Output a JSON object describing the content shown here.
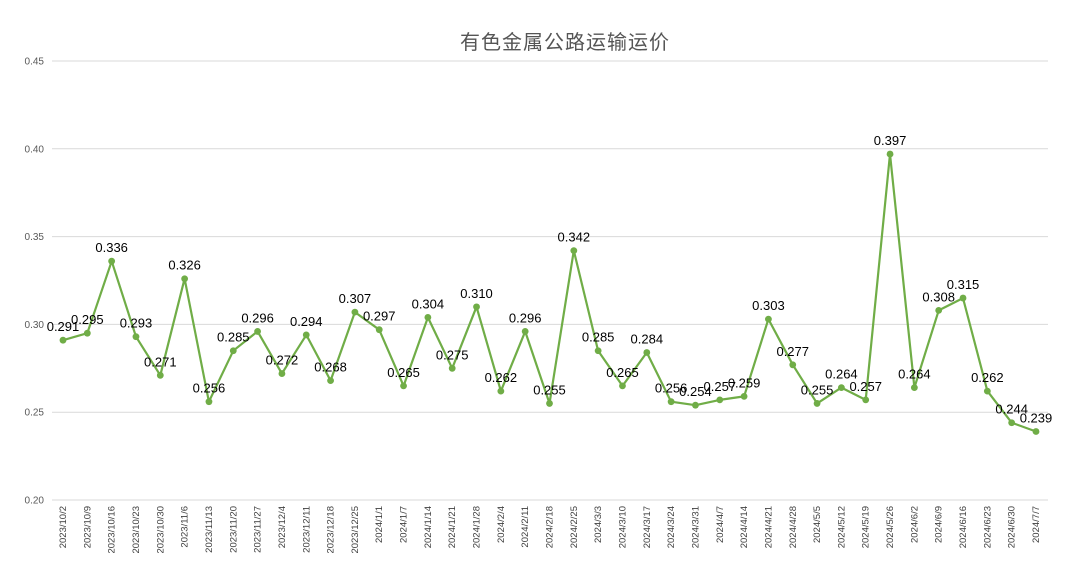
{
  "chart_data": {
    "type": "line",
    "title": "有色金属公路运输运价",
    "xlabel": "",
    "ylabel": "",
    "ylim": [
      0.2,
      0.45
    ],
    "yticks": [
      "0.20",
      "0.25",
      "0.30",
      "0.35",
      "0.40",
      "0.45"
    ],
    "grid": true,
    "legend": "none",
    "color": "#70AD47",
    "categories": [
      "2023/10/2",
      "2023/10/9",
      "2023/10/16",
      "2023/10/23",
      "2023/10/30",
      "2023/11/6",
      "2023/11/13",
      "2023/11/20",
      "2023/11/27",
      "2023/12/4",
      "2023/12/11",
      "2023/12/18",
      "2023/12/25",
      "2024/1/1",
      "2024/1/7",
      "2024/1/14",
      "2024/1/21",
      "2024/1/28",
      "2024/2/4",
      "2024/2/11",
      "2024/2/18",
      "2024/2/25",
      "2024/3/3",
      "2024/3/10",
      "2024/3/17",
      "2024/3/24",
      "2024/3/31",
      "2024/4/7",
      "2024/4/14",
      "2024/4/21",
      "2024/4/28",
      "2024/5/5",
      "2024/5/12",
      "2024/5/19",
      "2024/5/26",
      "2024/6/2",
      "2024/6/9",
      "2024/6/16",
      "2024/6/23",
      "2024/6/30",
      "2024/7/7"
    ],
    "values": [
      0.291,
      0.295,
      0.336,
      0.293,
      0.271,
      0.326,
      0.256,
      0.285,
      0.296,
      0.272,
      0.294,
      0.268,
      0.307,
      0.297,
      0.265,
      0.304,
      0.275,
      0.31,
      0.262,
      0.296,
      0.255,
      0.342,
      0.285,
      0.265,
      0.284,
      0.256,
      0.254,
      0.257,
      0.259,
      0.303,
      0.277,
      0.255,
      0.264,
      0.257,
      0.397,
      0.264,
      0.308,
      0.315,
      0.262,
      0.244,
      0.239
    ],
    "data_labels": [
      "0.291",
      "0.295",
      "0.336",
      "0.293",
      "0.271",
      "0.326",
      "0.256",
      "0.285",
      "0.296",
      "0.272",
      "0.294",
      "0.268",
      "0.307",
      "0.297",
      "0.265",
      "0.304",
      "0.275",
      "0.310",
      "0.262",
      "0.296",
      "0.255",
      "0.342",
      "0.285",
      "0.265",
      "0.284",
      "0.256",
      "0.254",
      "0.257",
      "0.259",
      "0.303",
      "0.277",
      "0.255",
      "0.264",
      "0.257",
      "0.397",
      "0.264",
      "0.308",
      "0.315",
      "0.262",
      "0.244",
      "0.239"
    ]
  }
}
